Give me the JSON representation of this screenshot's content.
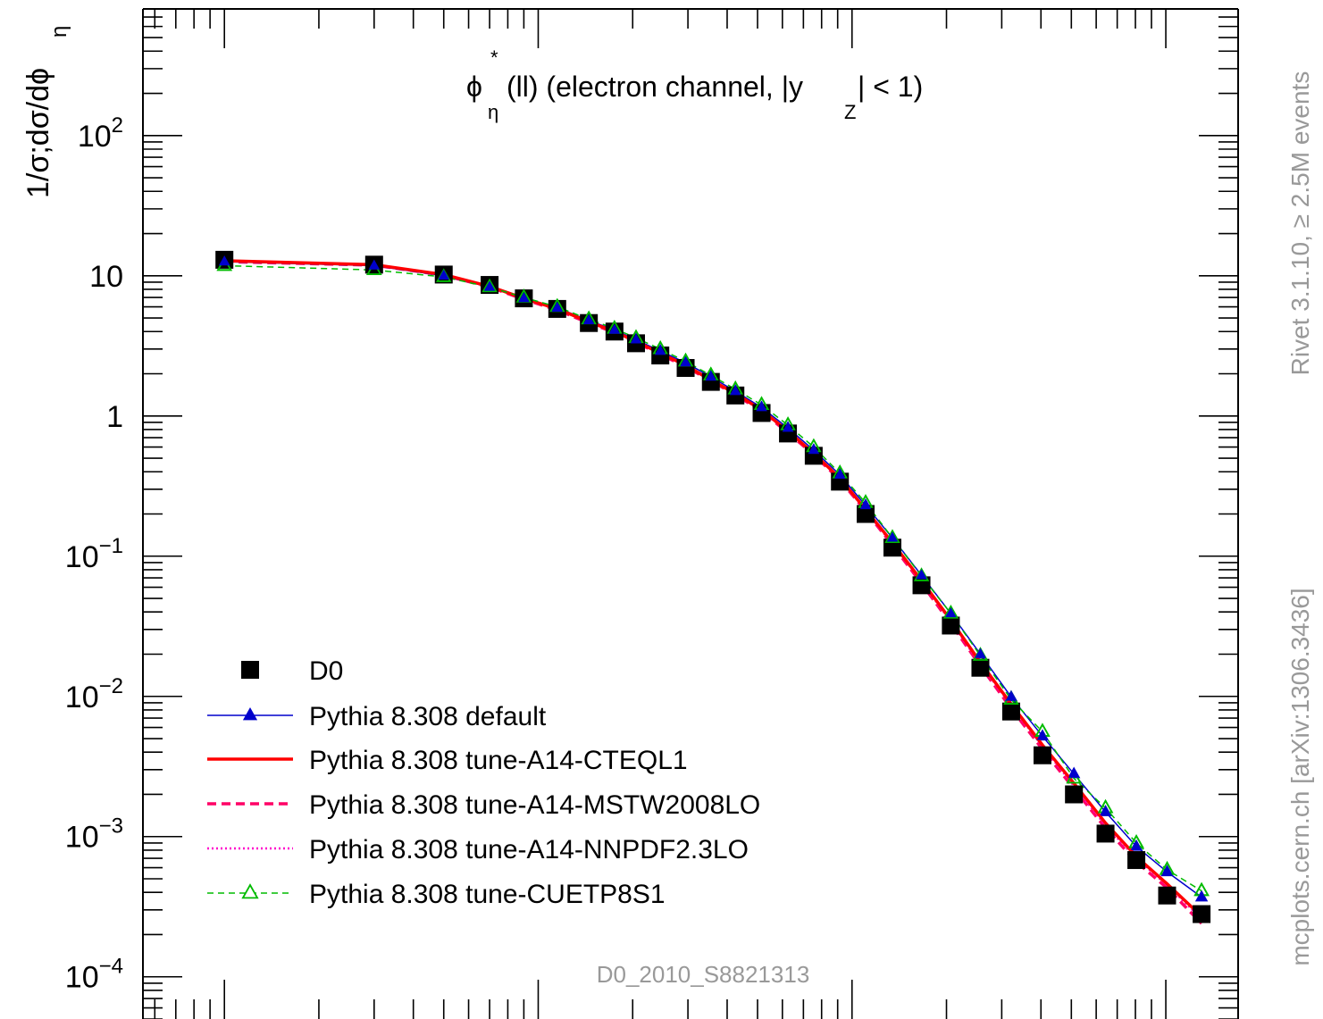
{
  "chart_data": {
    "type": "line",
    "yscale": "log",
    "ylim": [
      5e-05,
      800
    ],
    "xlim": [
      0.00055,
      1.7
    ],
    "annotation": "φ*η(ll) (electron channel, |yZ| < 1)",
    "annotation_parts": {
      "phi": "ϕ",
      "star": "*",
      "eta": "η",
      "main": "(ll) (electron channel, |y",
      "sub": "Z",
      "end": "| < 1)"
    },
    "ylabel": "1/σ;dσ/dϕ*η",
    "ylabel_parts": {
      "main": "1/σ;dσ/dϕ",
      "sub": "η"
    },
    "side_labels": {
      "rivet": "Rivet 3.1.10, ≥ 2.5M events",
      "mcplots": "mcplots.cern.ch [arXiv:1306.3436]"
    },
    "watermark": "D0_2010_S8821313",
    "y_ticks": [
      {
        "value": 100,
        "base": "10",
        "exp": "2"
      },
      {
        "value": 10,
        "base": "10",
        "exp": ""
      },
      {
        "value": 1,
        "base": "1",
        "exp": ""
      },
      {
        "value": 0.1,
        "base": "10",
        "exp": "−1"
      },
      {
        "value": 0.01,
        "base": "10",
        "exp": "−2"
      },
      {
        "value": 0.001,
        "base": "10",
        "exp": "−3"
      },
      {
        "value": 0.0001,
        "base": "10",
        "exp": "−4"
      }
    ],
    "x": [
      0.001,
      0.003,
      0.005,
      0.007,
      0.009,
      0.0115,
      0.0145,
      0.0175,
      0.0205,
      0.0245,
      0.0295,
      0.0355,
      0.0425,
      0.0515,
      0.0625,
      0.0755,
      0.0915,
      0.1105,
      0.1345,
      0.1665,
      0.2065,
      0.2565,
      0.3215,
      0.4045,
      0.5095,
      0.6425,
      0.8055,
      1.0095
    ],
    "data": {
      "name": "D0",
      "values": [
        13.0,
        12.0,
        10.2,
        8.6,
        6.9,
        5.8,
        4.6,
        4.0,
        3.3,
        2.7,
        2.2,
        1.75,
        1.4,
        1.05,
        0.75,
        0.52,
        0.34,
        0.2,
        0.115,
        0.062,
        0.032,
        0.016,
        0.0078,
        0.0038,
        0.002,
        0.00105,
        0.00068,
        0.00038
      ],
      "extra": {
        "x": 1.3,
        "y": 0.00028
      }
    },
    "series": [
      {
        "name": "Pythia 8.308 default",
        "color": "#0000cc",
        "style": "solid-triangle",
        "values": [
          12.6,
          11.8,
          10.0,
          8.3,
          6.9,
          5.9,
          4.8,
          4.1,
          3.5,
          2.9,
          2.4,
          1.9,
          1.5,
          1.15,
          0.82,
          0.57,
          0.38,
          0.23,
          0.135,
          0.073,
          0.039,
          0.02,
          0.0099,
          0.0052,
          0.0028,
          0.0015,
          0.00085,
          0.00056
        ],
        "extra": {
          "x": 1.3,
          "y": 0.00037
        }
      },
      {
        "name": "Pythia 8.308 tune-A14-CTEQL1",
        "color": "#ff0000",
        "style": "solid-thick",
        "values": [
          12.8,
          12.0,
          10.2,
          8.4,
          6.9,
          5.8,
          4.7,
          4.0,
          3.4,
          2.8,
          2.3,
          1.8,
          1.45,
          1.1,
          0.78,
          0.54,
          0.36,
          0.215,
          0.125,
          0.067,
          0.035,
          0.0175,
          0.0088,
          0.0045,
          0.0024,
          0.00125,
          0.00072,
          0.00046
        ],
        "extra": {
          "x": 1.3,
          "y": 0.00027
        }
      },
      {
        "name": "Pythia 8.308 tune-A14-MSTW2008LO",
        "color": "#ff0066",
        "style": "dashed",
        "values": [
          12.6,
          11.9,
          10.1,
          8.3,
          6.8,
          5.7,
          4.6,
          3.95,
          3.35,
          2.75,
          2.25,
          1.78,
          1.42,
          1.08,
          0.76,
          0.53,
          0.35,
          0.21,
          0.12,
          0.064,
          0.033,
          0.0165,
          0.0082,
          0.0042,
          0.0022,
          0.00115,
          0.00066,
          0.00043
        ],
        "extra": {
          "x": 1.3,
          "y": 0.00024
        }
      },
      {
        "name": "Pythia 8.308 tune-A14-NNPDF2.3LO",
        "color": "#ff00cc",
        "style": "dotted",
        "values": [
          12.7,
          11.9,
          10.1,
          8.4,
          6.9,
          5.8,
          4.7,
          4.0,
          3.4,
          2.8,
          2.3,
          1.8,
          1.44,
          1.09,
          0.77,
          0.54,
          0.355,
          0.212,
          0.122,
          0.066,
          0.034,
          0.017,
          0.0086,
          0.0044,
          0.0023,
          0.0012,
          0.0007,
          0.00045
        ],
        "extra": {
          "x": 1.3,
          "y": 0.00026
        }
      },
      {
        "name": "Pythia 8.308 tune-CUETP8S1",
        "color": "#00bb00",
        "style": "dashed-open-triangle",
        "values": [
          11.8,
          11.0,
          9.8,
          8.3,
          7.0,
          6.0,
          4.9,
          4.2,
          3.6,
          3.0,
          2.45,
          1.95,
          1.55,
          1.2,
          0.86,
          0.6,
          0.39,
          0.24,
          0.135,
          0.072,
          0.039,
          0.0195,
          0.0095,
          0.0056,
          0.0026,
          0.0016,
          0.0009,
          0.00058
        ],
        "extra": {
          "x": 1.3,
          "y": 0.00041
        }
      }
    ],
    "legend_position": "bottom-left",
    "grid": false
  }
}
